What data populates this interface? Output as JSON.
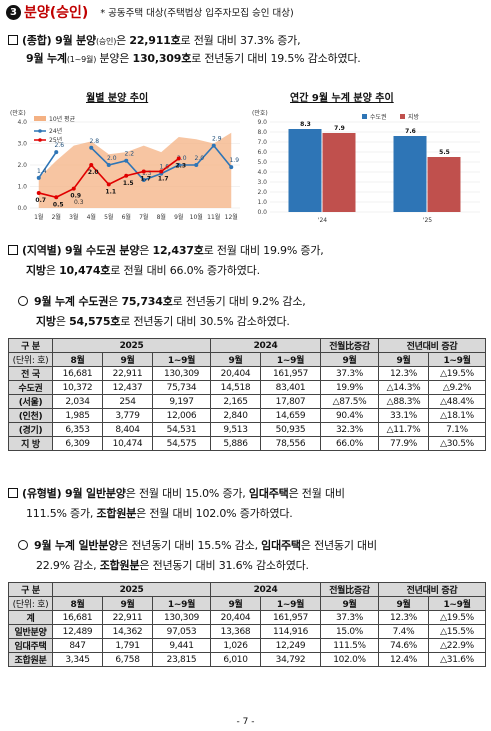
{
  "header": {
    "number": "❸",
    "title": "분양(승인)",
    "note": "* 공동주택 대상(주택법상 입주자모집 승인 대상)"
  },
  "para1": {
    "l1": {
      "a": "(종합) 9월 분양",
      "b": "(승인)",
      "c": "은 ",
      "d": "22,911호",
      "e": "로 전월 대비 37.3% 증가,"
    },
    "l2": {
      "a": "9월 누계",
      "b": "(1~9월)",
      "c": " 분양은 ",
      "d": "130,309호",
      "e": "로 전년동기 대비 19.5% 감소하였다."
    }
  },
  "chart_data": [
    {
      "type": "line",
      "title": "월별 분양 추이",
      "unit": "(만호)",
      "categories": [
        "1월",
        "2월",
        "3월",
        "4월",
        "5월",
        "6월",
        "7월",
        "8월",
        "9월",
        "10월",
        "11월",
        "12월"
      ],
      "ylim": [
        0,
        4.0
      ],
      "yticks": [
        "0.0",
        "1.0",
        "2.0",
        "3.0",
        "4.0"
      ],
      "series": [
        {
          "name": "10년 평균",
          "kind": "area",
          "color": "#f4b183",
          "values": [
            1.4,
            2.2,
            2.9,
            3.1,
            2.5,
            2.6,
            2.9,
            2.6,
            3.3,
            3.2,
            3.0,
            3.5
          ]
        },
        {
          "name": "24년",
          "kind": "line",
          "color": "#2e75b6",
          "show_labels": true,
          "values": [
            1.4,
            2.6,
            null,
            2.8,
            2.0,
            2.2,
            1.3,
            1.6,
            2.0,
            2.0,
            2.9,
            1.9
          ],
          "labels": [
            "1.4",
            "2.6",
            "",
            "2.8",
            "2.0",
            "2.2",
            "1.3",
            "1.6",
            "2.0",
            "2.0",
            "2.9",
            "1.9"
          ]
        },
        {
          "name": "25년",
          "kind": "line",
          "color": "#e00000",
          "show_labels": true,
          "values": [
            0.7,
            0.5,
            0.9,
            2.0,
            1.1,
            1.5,
            1.7,
            1.7,
            2.3,
            null,
            null,
            null
          ],
          "labels": [
            "0.7",
            "0.5",
            "0.9",
            "2.0",
            "1.1",
            "1.5",
            "1.7",
            "1.7",
            "2.3",
            "",
            "",
            ""
          ]
        }
      ],
      "extra_labels": [
        {
          "index": 2,
          "text": "0.3"
        }
      ]
    },
    {
      "type": "bar",
      "title": "연간 9월 누계 분양 추이",
      "unit": "(만호)",
      "categories": [
        "'24",
        "'25"
      ],
      "ylim": [
        0,
        9.0
      ],
      "yticks": [
        "0.0",
        "1.0",
        "2.0",
        "3.0",
        "4.0",
        "5.0",
        "6.0",
        "7.0",
        "8.0",
        "9.0"
      ],
      "series": [
        {
          "name": "수도권",
          "color": "#2e75b6",
          "values": [
            8.3,
            7.6
          ]
        },
        {
          "name": "지방",
          "color": "#c0504d",
          "values": [
            7.9,
            5.5
          ]
        }
      ],
      "labels": [
        [
          "8.3",
          "7.9"
        ],
        [
          "7.6",
          "5.5"
        ]
      ]
    }
  ],
  "para2": {
    "l1": {
      "a": "(지역별) 9월 수도권 분양",
      "b": "은 ",
      "c": "12,437호",
      "d": "로 전월 대비 19.9% 증가,"
    },
    "l2": {
      "a": "지방",
      "b": "은 ",
      "c": "10,474호",
      "d": "로 전월 대비 66.0% 증가하였다."
    }
  },
  "para3": {
    "l1": {
      "a": "9월 누계 수도권",
      "b": "은 ",
      "c": "75,734호",
      "d": "로 전년동기 대비 9.2% 감소,"
    },
    "l2": {
      "a": "지방",
      "b": "은 ",
      "c": "54,575호",
      "d": "로 전년동기 대비 30.5% 감소하였다."
    }
  },
  "table1": {
    "h_category": "구 분",
    "h_unit": "(단위: 호)",
    "h_2025": "2025",
    "h_2024": "2024",
    "h_mom": "전월比증감",
    "h_yoy": "전년대비 증감",
    "sub": [
      "8월",
      "9월",
      "1~9월",
      "9월",
      "1~9월",
      "9월",
      "9월",
      "1~9월"
    ],
    "rows": [
      {
        "label": "전 국",
        "cells": [
          "16,681",
          "22,911",
          "130,309",
          "20,404",
          "161,957",
          "37.3%",
          "12.3%",
          "△19.5%"
        ]
      },
      {
        "label": "수도권",
        "cells": [
          "10,372",
          "12,437",
          "75,734",
          "14,518",
          "83,401",
          "19.9%",
          "△14.3%",
          "△9.2%"
        ]
      },
      {
        "label": "(서울)",
        "cells": [
          "2,034",
          "254",
          "9,197",
          "2,165",
          "17,807",
          "△87.5%",
          "△88.3%",
          "△48.4%"
        ]
      },
      {
        "label": "(인천)",
        "cells": [
          "1,985",
          "3,779",
          "12,006",
          "2,840",
          "14,659",
          "90.4%",
          "33.1%",
          "△18.1%"
        ]
      },
      {
        "label": "(경기)",
        "cells": [
          "6,353",
          "8,404",
          "54,531",
          "9,513",
          "50,935",
          "32.3%",
          "△11.7%",
          "7.1%"
        ]
      },
      {
        "label": "지 방",
        "cells": [
          "6,309",
          "10,474",
          "54,575",
          "5,886",
          "78,556",
          "66.0%",
          "77.9%",
          "△30.5%"
        ]
      }
    ]
  },
  "para4": {
    "l1": {
      "a": "(유형별) 9월 일반분양",
      "b": "은 전월 대비 15.0% 증가, ",
      "c": "임대주택",
      "d": "은 전월 대비"
    },
    "l2": {
      "a": "111.5% 증가, ",
      "b": "조합원분",
      "c": "은 전월 대비 102.0% 증가하였다."
    }
  },
  "para5": {
    "l1": {
      "a": "9월 누계 일반분양",
      "b": "은 전년동기 대비 15.5% 감소, ",
      "c": "임대주택",
      "d": "은 전년동기 대비"
    },
    "l2": {
      "a": "22.9% 감소, ",
      "b": "조합원분",
      "c": "은 전년동기 대비 31.6% 감소하였다."
    }
  },
  "table2": {
    "h_category": "구 분",
    "h_unit": "(단위: 호)",
    "h_2025": "2025",
    "h_2024": "2024",
    "h_mom": "전월比증감",
    "h_yoy": "전년대비 증감",
    "sub": [
      "8월",
      "9월",
      "1~9월",
      "9월",
      "1~9월",
      "9월",
      "9월",
      "1~9월"
    ],
    "rows": [
      {
        "label": "계",
        "cells": [
          "16,681",
          "22,911",
          "130,309",
          "20,404",
          "161,957",
          "37.3%",
          "12.3%",
          "△19.5%"
        ]
      },
      {
        "label": "일반분양",
        "cells": [
          "12,489",
          "14,362",
          "97,053",
          "13,368",
          "114,916",
          "15.0%",
          "7.4%",
          "△15.5%"
        ]
      },
      {
        "label": "임대주택",
        "cells": [
          "847",
          "1,791",
          "9,441",
          "1,026",
          "12,249",
          "111.5%",
          "74.6%",
          "△22.9%"
        ]
      },
      {
        "label": "조합원분",
        "cells": [
          "3,345",
          "6,758",
          "23,815",
          "6,010",
          "34,792",
          "102.0%",
          "12.4%",
          "△31.6%"
        ]
      }
    ]
  },
  "footer": "- 7 -"
}
